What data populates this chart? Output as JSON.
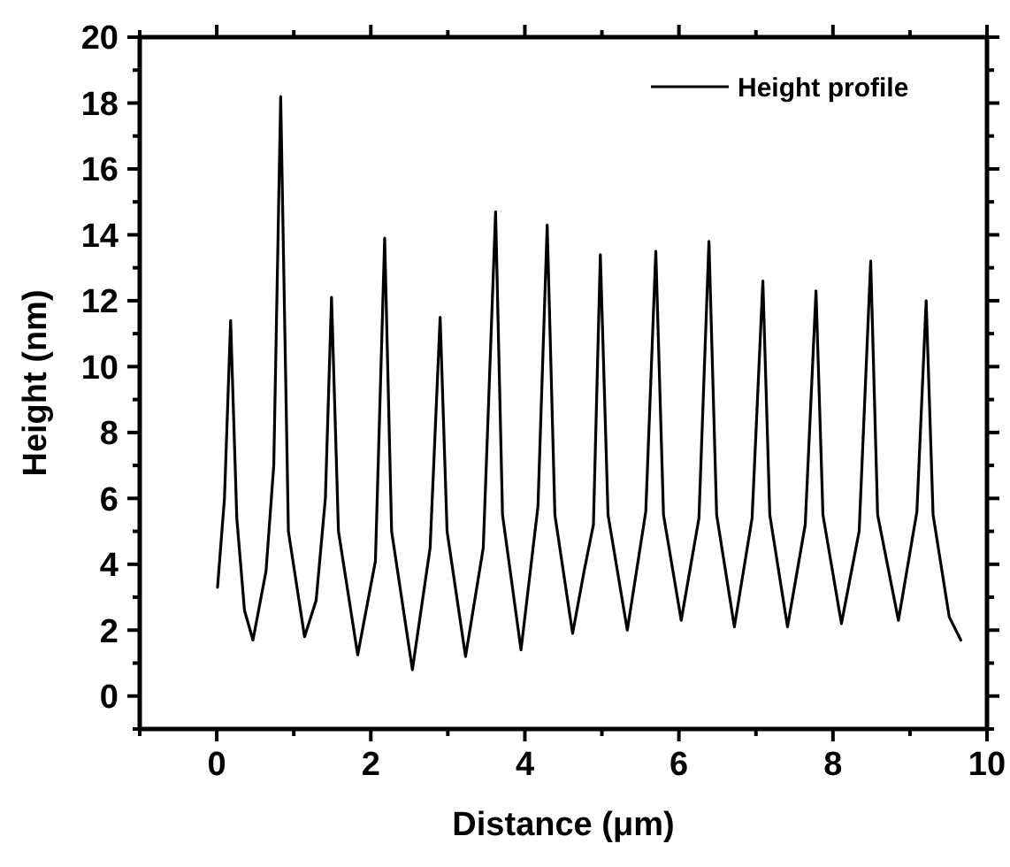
{
  "chart_data": {
    "type": "line",
    "xlabel": "Distance (μm)",
    "ylabel": "Height (nm)",
    "xlim": [
      -1,
      10
    ],
    "ylim": [
      -1,
      20
    ],
    "xticks": [
      {
        "value": -1,
        "label": null
      },
      0,
      {
        "value": 1,
        "label": null
      },
      2,
      {
        "value": 3,
        "label": null
      },
      4,
      {
        "value": 5,
        "label": null
      },
      6,
      {
        "value": 7,
        "label": null
      },
      8,
      {
        "value": 9,
        "label": null
      },
      10
    ],
    "yticks": [
      {
        "value": -1,
        "label": null
      },
      0,
      {
        "value": 1,
        "label": null
      },
      2,
      {
        "value": 3,
        "label": null
      },
      4,
      {
        "value": 5,
        "label": null
      },
      6,
      {
        "value": 7,
        "label": null
      },
      8,
      {
        "value": 9,
        "label": null
      },
      10,
      {
        "value": 11,
        "label": null
      },
      12,
      {
        "value": 13,
        "label": null
      },
      14,
      {
        "value": 15,
        "label": null
      },
      16,
      {
        "value": 17,
        "label": null
      },
      18,
      {
        "value": 19,
        "label": null
      },
      20
    ],
    "legend": "top right",
    "grid": false,
    "marker": "none",
    "line_style": "solid",
    "series": [
      {
        "name": "Height profile",
        "color": "#000000",
        "x": [
          0.01,
          0.1,
          0.18,
          0.26,
          0.36,
          0.47,
          0.64,
          0.74,
          0.83,
          0.93,
          1.14,
          1.29,
          1.41,
          1.49,
          1.58,
          1.83,
          2.06,
          2.18,
          2.27,
          2.54,
          2.77,
          2.9,
          2.99,
          3.23,
          3.46,
          3.62,
          3.71,
          3.95,
          4.17,
          4.29,
          4.39,
          4.62,
          4.77,
          4.89,
          4.98,
          5.08,
          5.33,
          5.57,
          5.7,
          5.8,
          6.03,
          6.26,
          6.39,
          6.49,
          6.72,
          6.95,
          7.09,
          7.18,
          7.41,
          7.64,
          7.78,
          7.87,
          8.11,
          8.34,
          8.49,
          8.58,
          8.85,
          9.09,
          9.21,
          9.3,
          9.51,
          9.66
        ],
        "values": [
          3.3,
          6,
          11.4,
          5.4,
          2.6,
          1.7,
          3.8,
          7,
          18.2,
          5,
          1.8,
          2.9,
          6,
          12.1,
          5,
          1.25,
          4.1,
          13.9,
          5,
          0.8,
          4.5,
          11.5,
          5,
          1.2,
          4.5,
          14.7,
          5.5,
          1.4,
          5.75,
          14.3,
          5.5,
          1.9,
          3.8,
          5.2,
          13.4,
          5.5,
          2.0,
          5.6,
          13.5,
          5.5,
          2.3,
          5.4,
          13.8,
          5.5,
          2.1,
          5.4,
          12.6,
          5.5,
          2.1,
          5.2,
          12.3,
          5.5,
          2.2,
          5.0,
          13.2,
          5.5,
          2.3,
          5.6,
          12.0,
          5.5,
          2.4,
          1.7
        ]
      }
    ]
  }
}
